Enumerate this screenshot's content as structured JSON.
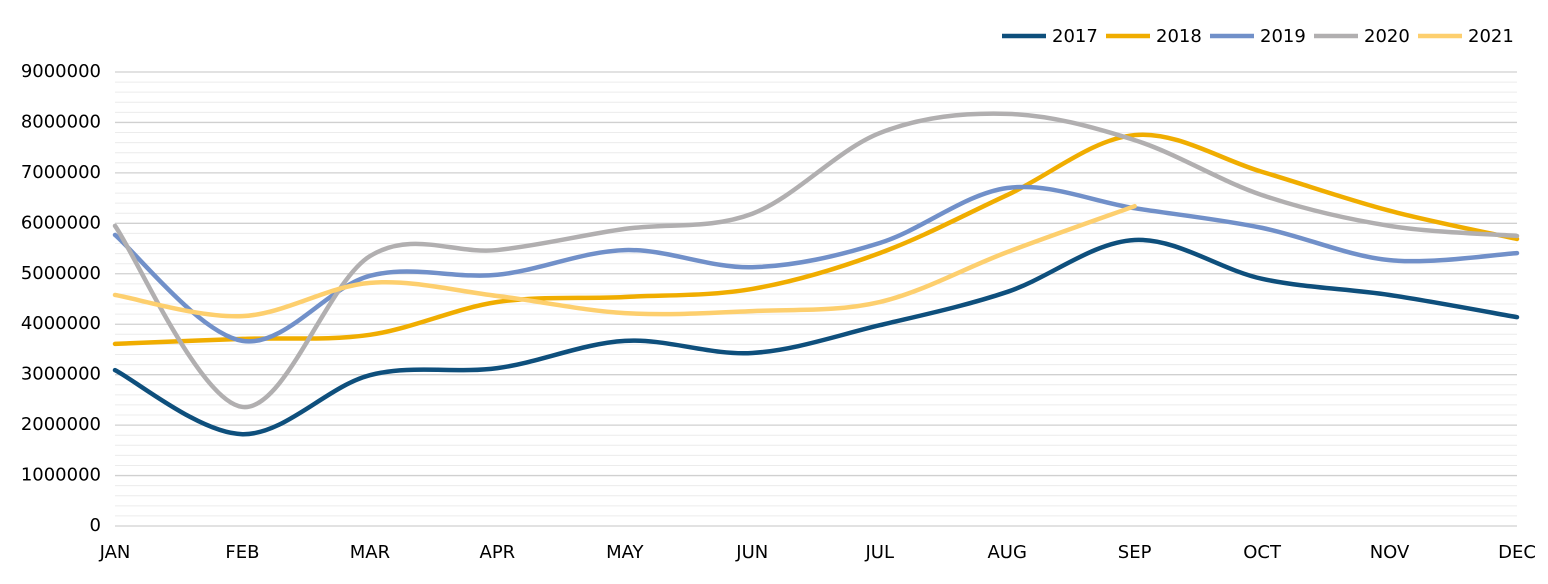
{
  "chart_data": {
    "type": "line",
    "categories": [
      "JAN",
      "FEB",
      "MAR",
      "APR",
      "MAY",
      "JUN",
      "JUL",
      "AUG",
      "SEP",
      "OCT",
      "NOV",
      "DEC"
    ],
    "series": [
      {
        "name": "2017",
        "color": "#0e4f7c",
        "values": [
          3090000,
          1820000,
          2990000,
          3130000,
          3670000,
          3430000,
          3980000,
          4640000,
          5670000,
          4900000,
          4580000,
          4140000
        ]
      },
      {
        "name": "2018",
        "color": "#f0ad00",
        "values": [
          3610000,
          3710000,
          3790000,
          4440000,
          4540000,
          4700000,
          5410000,
          6560000,
          7750000,
          7020000,
          6250000,
          5690000
        ]
      },
      {
        "name": "2019",
        "color": "#7190c9",
        "values": [
          5770000,
          3670000,
          4960000,
          4980000,
          5470000,
          5130000,
          5610000,
          6700000,
          6300000,
          5910000,
          5270000,
          5410000
        ]
      },
      {
        "name": "2020",
        "color": "#b1afb0",
        "values": [
          5950000,
          2360000,
          5350000,
          5470000,
          5890000,
          6190000,
          7790000,
          8170000,
          7650000,
          6560000,
          5950000,
          5750000
        ]
      },
      {
        "name": "2021",
        "color": "#fdcf6e",
        "values": [
          4580000,
          4160000,
          4820000,
          4560000,
          4220000,
          4260000,
          4440000,
          5430000,
          6340000,
          null,
          null,
          null
        ]
      }
    ],
    "ylim": [
      0,
      9000000
    ],
    "yticks": [
      0,
      1000000,
      2000000,
      3000000,
      4000000,
      5000000,
      6000000,
      7000000,
      8000000,
      9000000
    ],
    "yminor_ticks": [
      200000,
      400000,
      600000,
      800000,
      1200000,
      1400000,
      1600000,
      1800000,
      2200000,
      2400000,
      2600000,
      2800000,
      3200000,
      3400000,
      3600000,
      3800000,
      4200000,
      4400000,
      4600000,
      4800000,
      5200000,
      5400000,
      5600000,
      5800000,
      6200000,
      6400000,
      6600000,
      6800000,
      7200000,
      7400000,
      7600000,
      7800000,
      8200000,
      8400000,
      8600000,
      8800000
    ],
    "grid": true,
    "smooth": true,
    "legend": "top-right"
  }
}
